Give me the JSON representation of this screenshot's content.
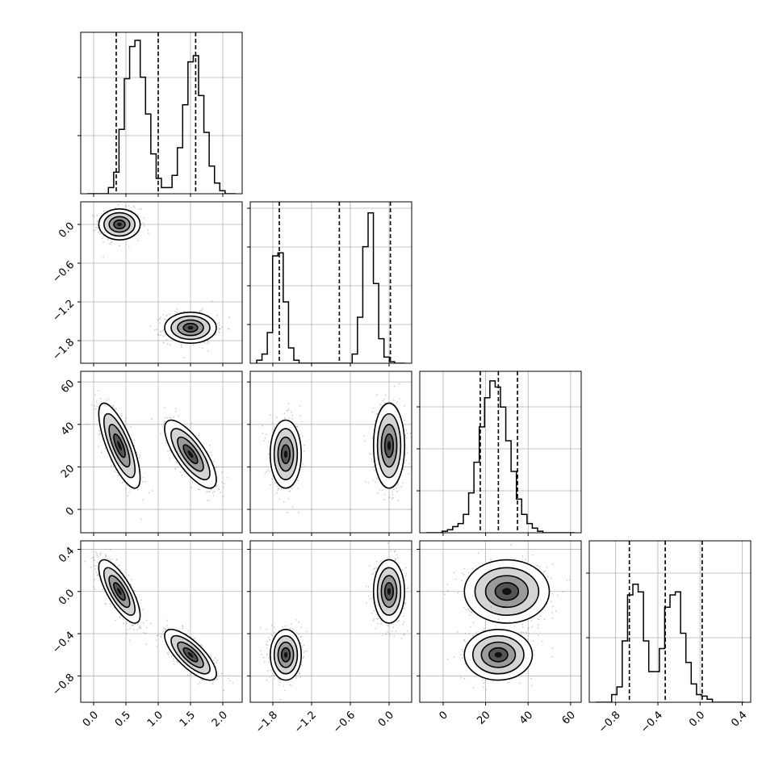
{
  "chart_data": {
    "type": "corner",
    "n_params": 4,
    "colors": {
      "hist": "#000000",
      "quantile": "#000000",
      "grid": "#b0b0b0",
      "points": "#555555",
      "density_dark": "#000000"
    },
    "grid": true,
    "quantile_style": "dashed",
    "params": [
      {
        "range": [
          -0.2,
          2.3
        ],
        "ticks": [
          0.0,
          0.5,
          1.0,
          1.5,
          2.0
        ],
        "tick_labels": [
          "0.0",
          "0.5",
          "1.0",
          "1.5",
          "2.0"
        ],
        "quantiles": [
          0.35,
          1.0,
          1.58
        ]
      },
      {
        "range": [
          -2.15,
          0.35
        ],
        "ticks": [
          -1.8,
          -1.2,
          -0.6,
          0.0
        ],
        "tick_labels": [
          "−1.8",
          "−1.2",
          "−0.6",
          "0.0"
        ],
        "quantiles": [
          -1.7,
          -0.77,
          0.02
        ]
      },
      {
        "range": [
          -11,
          65
        ],
        "ticks": [
          0,
          20,
          40,
          60
        ],
        "tick_labels": [
          "0",
          "20",
          "40",
          "60"
        ],
        "quantiles": [
          17.5,
          26,
          35
        ]
      },
      {
        "range": [
          -1.05,
          0.48
        ],
        "ticks": [
          -0.8,
          -0.4,
          0.0,
          0.4
        ],
        "tick_labels": [
          "−0.8",
          "−0.4",
          "0.0",
          "0.4"
        ],
        "quantiles": [
          -0.67,
          -0.33,
          0.02
        ]
      }
    ],
    "histograms": [
      [
        0,
        0,
        0,
        0,
        0.04,
        0.14,
        0.42,
        0.75,
        0.96,
        1.0,
        0.76,
        0.52,
        0.26,
        0.1,
        0.04,
        0.04,
        0.12,
        0.3,
        0.58,
        0.86,
        0.9,
        0.64,
        0.4,
        0.18,
        0.07,
        0.02,
        0,
        0
      ],
      [
        0.02,
        0.06,
        0.2,
        0.7,
        0.72,
        0.4,
        0.1,
        0.02,
        0,
        0,
        0,
        0,
        0,
        0,
        0,
        0,
        0,
        0,
        0.06,
        0.3,
        0.76,
        0.98,
        0.52,
        0.16,
        0.04,
        0.01,
        0,
        0
      ],
      [
        0,
        0,
        0,
        0.01,
        0.02,
        0.04,
        0.06,
        0.12,
        0.26,
        0.46,
        0.69,
        0.88,
        0.99,
        0.95,
        0.82,
        0.6,
        0.4,
        0.22,
        0.12,
        0.06,
        0.03,
        0.01,
        0,
        0,
        0,
        0,
        0,
        0
      ],
      [
        0,
        0,
        0,
        0.05,
        0.1,
        0.4,
        0.7,
        0.77,
        0.72,
        0.4,
        0.2,
        0.2,
        0.35,
        0.62,
        0.7,
        0.72,
        0.45,
        0.26,
        0.12,
        0.05,
        0.04,
        0.02,
        0,
        0,
        0,
        0,
        0,
        0
      ]
    ],
    "hist_yticks": [
      [
        0.36,
        0.72
      ],
      [
        0.24,
        0.48,
        0.72,
        0.96
      ],
      [
        0.26,
        0.52,
        0.78
      ],
      [
        0.4,
        0.8
      ]
    ],
    "modes": [
      {
        "mean": [
          0.4,
          0.0,
          30,
          0.0
        ],
        "sd": [
          0.16,
          0.12,
          10,
          0.15
        ]
      },
      {
        "mean": [
          1.5,
          -1.6,
          26,
          -0.6
        ],
        "sd": [
          0.2,
          0.12,
          8,
          0.12
        ]
      }
    ],
    "correlations": [
      [
        0,
        -1,
        1
      ],
      [
        0,
        2,
        -0.75
      ],
      [
        0,
        3,
        -0.75
      ],
      [
        1,
        2,
        0
      ],
      [
        1,
        3,
        0
      ],
      [
        2,
        3,
        0
      ]
    ]
  }
}
